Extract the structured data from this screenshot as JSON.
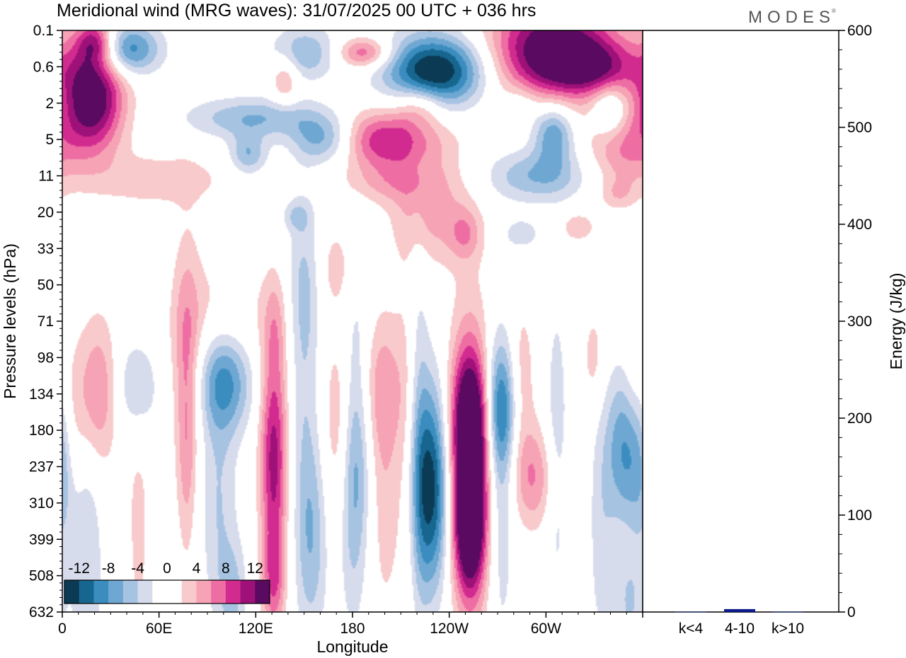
{
  "chart_data": {
    "type": "heatmap",
    "title": "Meridional wind (MRG waves):  31/07/2025  00 UTC  + 036 hrs",
    "brand": "MODES",
    "xlabel": "Longitude",
    "ylabel": "Pressure levels (hPa)",
    "x_ticks": [
      "0",
      "60E",
      "120E",
      "180",
      "120W",
      "60W"
    ],
    "x_tick_values": [
      0,
      60,
      120,
      180,
      240,
      300
    ],
    "xlim": [
      0,
      360
    ],
    "y_levels": [
      "0.1",
      "0.6",
      "2",
      "5",
      "11",
      "20",
      "33",
      "50",
      "71",
      "98",
      "134",
      "180",
      "237",
      "310",
      "399",
      "508",
      "632"
    ],
    "colorbar": {
      "labels": [
        "-12",
        "-8",
        "-4",
        "0",
        "4",
        "8",
        "12"
      ],
      "label_values": [
        -12,
        -8,
        -4,
        0,
        4,
        8,
        12
      ],
      "colors": [
        "#0b3a54",
        "#17668f",
        "#3b8dbf",
        "#6ea8d2",
        "#a7c3e2",
        "#d7dced",
        "#ffffff",
        "#ffffff",
        "#f9cacb",
        "#f6a3b6",
        "#ee6ea3",
        "#d22b8f",
        "#9d1179",
        "#5a0a60"
      ]
    },
    "blobs": [
      {
        "lon": 18,
        "lev": 1.8,
        "rx": 14,
        "ry": 1.1,
        "amp": 15
      },
      {
        "lon": 20,
        "lev": 0.3,
        "rx": 8,
        "ry": 0.4,
        "amp": 8
      },
      {
        "lon": 40,
        "lev": 0.5,
        "rx": 14,
        "ry": 0.5,
        "amp": -10
      },
      {
        "lon": 60,
        "lev": 4.1,
        "rx": 30,
        "ry": 0.5,
        "amp": 3.5
      },
      {
        "lon": 120,
        "lev": 2.4,
        "rx": 30,
        "ry": 0.4,
        "amp": -6
      },
      {
        "lon": 115,
        "lev": 3.4,
        "rx": 8,
        "ry": 0.4,
        "amp": -6
      },
      {
        "lon": 150,
        "lev": 0.6,
        "rx": 15,
        "ry": 0.5,
        "amp": -6
      },
      {
        "lon": 163,
        "lev": 3.0,
        "rx": 14,
        "ry": 0.5,
        "amp": -8
      },
      {
        "lon": 138,
        "lev": 1.3,
        "rx": 6,
        "ry": 0.5,
        "amp": 5
      },
      {
        "lon": 187,
        "lev": 0.6,
        "rx": 12,
        "ry": 0.3,
        "amp": 8
      },
      {
        "lon": 200,
        "lev": 3.0,
        "rx": 24,
        "ry": 0.6,
        "amp": 10
      },
      {
        "lon": 222,
        "lev": 2.0,
        "rx": 10,
        "ry": 0.4,
        "amp": 5
      },
      {
        "lon": 204,
        "lev": 4.2,
        "rx": 20,
        "ry": 0.4,
        "amp": 3.5
      },
      {
        "lon": 232,
        "lev": 1.1,
        "rx": 22,
        "ry": 0.7,
        "amp": -15
      },
      {
        "lon": 228,
        "lev": 5.0,
        "rx": 17,
        "ry": 1.0,
        "amp": 5
      },
      {
        "lon": 250,
        "lev": 5.6,
        "rx": 7,
        "ry": 0.5,
        "amp": 4
      },
      {
        "lon": 305,
        "lev": 0.5,
        "rx": 28,
        "ry": 1.0,
        "amp": 15
      },
      {
        "lon": 330,
        "lev": 1.0,
        "rx": 20,
        "ry": 0.5,
        "amp": 7
      },
      {
        "lon": 305,
        "lev": 2.8,
        "rx": 9,
        "ry": 0.6,
        "amp": -8
      },
      {
        "lon": 295,
        "lev": 4.0,
        "rx": 22,
        "ry": 0.5,
        "amp": -6
      },
      {
        "lon": 285,
        "lev": 2.0,
        "rx": 8,
        "ry": 0.4,
        "amp": -3
      },
      {
        "lon": 340,
        "lev": 2.2,
        "rx": 8,
        "ry": 0.5,
        "amp": -6
      },
      {
        "lon": 348,
        "lev": 3.2,
        "rx": 15,
        "ry": 0.8,
        "amp": 6
      },
      {
        "lon": 345,
        "lev": 4.5,
        "rx": 8,
        "ry": 0.3,
        "amp": 3
      },
      {
        "lon": 145,
        "lev": 5.1,
        "rx": 6,
        "ry": 0.3,
        "amp": -3.5
      },
      {
        "lon": 285,
        "lev": 5.6,
        "rx": 8,
        "ry": 0.3,
        "amp": -3.5
      },
      {
        "lon": 320,
        "lev": 5.4,
        "rx": 8,
        "ry": 0.3,
        "amp": 3.5
      },
      {
        "lon": 21,
        "lev": 10.0,
        "rx": 9,
        "ry": 1.5,
        "amp": 6.5
      },
      {
        "lon": 5,
        "lev": 10.8,
        "rx": 6,
        "ry": 1.5,
        "amp": 3.5
      },
      {
        "lon": 46,
        "lev": 9.8,
        "rx": 9,
        "ry": 1.0,
        "amp": -5
      },
      {
        "lon": 47,
        "lev": 13.5,
        "rx": 6,
        "ry": 3.0,
        "amp": 2.5
      },
      {
        "lon": 77,
        "lev": 9.2,
        "rx": 6,
        "ry": 2.5,
        "amp": 5
      },
      {
        "lon": 77,
        "lev": 12.0,
        "rx": 4,
        "ry": 2.0,
        "amp": 3
      },
      {
        "lon": 101,
        "lev": 9.6,
        "rx": 12,
        "ry": 1.0,
        "amp": -9
      },
      {
        "lon": 97,
        "lev": 13.0,
        "rx": 8,
        "ry": 2.5,
        "amp": -4
      },
      {
        "lon": 106,
        "lev": 15.5,
        "rx": 6,
        "ry": 1.0,
        "amp": -4
      },
      {
        "lon": 98,
        "lev": 8.0,
        "rx": 22,
        "ry": 1.3,
        "amp": 3
      },
      {
        "lon": 131,
        "lev": 11.8,
        "rx": 6,
        "ry": 2.2,
        "amp": 11
      },
      {
        "lon": 131,
        "lev": 15.2,
        "rx": 5,
        "ry": 1.0,
        "amp": 6
      },
      {
        "lon": 150,
        "lev": 10.2,
        "rx": 6,
        "ry": 3.5,
        "amp": -3
      },
      {
        "lon": 155,
        "lev": 14.0,
        "rx": 7,
        "ry": 2.0,
        "amp": -5
      },
      {
        "lon": 172,
        "lev": 11.0,
        "rx": 7,
        "ry": 2.0,
        "amp": 4
      },
      {
        "lon": 180,
        "lev": 13.0,
        "rx": 6,
        "ry": 2.5,
        "amp": -4
      },
      {
        "lon": 183,
        "lev": 10.5,
        "rx": 7,
        "ry": 2.5,
        "amp": -6
      },
      {
        "lon": 195,
        "lev": 9.8,
        "rx": 13,
        "ry": 1.5,
        "amp": 5
      },
      {
        "lon": 200,
        "lev": 13.0,
        "rx": 7,
        "ry": 2.5,
        "amp": 3
      },
      {
        "lon": 215,
        "lev": 11.5,
        "rx": 5,
        "ry": 4.0,
        "amp": 3
      },
      {
        "lon": 229,
        "lev": 12.6,
        "rx": 8,
        "ry": 2.0,
        "amp": -13
      },
      {
        "lon": 220,
        "lev": 11.0,
        "rx": 5,
        "ry": 4.0,
        "amp": -4
      },
      {
        "lon": 253,
        "lev": 10.8,
        "rx": 8,
        "ry": 1.4,
        "amp": 14
      },
      {
        "lon": 253,
        "lev": 13.6,
        "rx": 7,
        "ry": 1.3,
        "amp": 15
      },
      {
        "lon": 253,
        "lev": 12.2,
        "rx": 10,
        "ry": 3.5,
        "amp": 6
      },
      {
        "lon": 272,
        "lev": 10.4,
        "rx": 7,
        "ry": 1.3,
        "amp": -9
      },
      {
        "lon": 272,
        "lev": 13.0,
        "rx": 6,
        "ry": 3.0,
        "amp": -4
      },
      {
        "lon": 285,
        "lev": 9.5,
        "rx": 6,
        "ry": 1.5,
        "amp": 3.5
      },
      {
        "lon": 292,
        "lev": 12.3,
        "rx": 10,
        "ry": 1.0,
        "amp": 6
      },
      {
        "lon": 307,
        "lev": 11.5,
        "rx": 5,
        "ry": 3.0,
        "amp": -3.5
      },
      {
        "lon": 330,
        "lev": 9.0,
        "rx": 5,
        "ry": 1.0,
        "amp": 3
      },
      {
        "lon": 351,
        "lev": 11.5,
        "rx": 9,
        "ry": 1.5,
        "amp": -9
      },
      {
        "lon": 352,
        "lev": 15.8,
        "rx": 6,
        "ry": 1.0,
        "amp": -4
      },
      {
        "lon": 335,
        "lev": 14.0,
        "rx": 6,
        "ry": 2.5,
        "amp": -3
      },
      {
        "lon": 15,
        "lev": 14.5,
        "rx": 7,
        "ry": 3.0,
        "amp": -4
      },
      {
        "lon": 0,
        "lev": 12.0,
        "rx": 5,
        "ry": 2.0,
        "amp": -3
      },
      {
        "lon": 132,
        "lev": 8.0,
        "rx": 5,
        "ry": 1.0,
        "amp": 3
      },
      {
        "lon": 355,
        "lev": 10.0,
        "rx": 5,
        "ry": 1.5,
        "amp": 3
      },
      {
        "lon": 170,
        "lev": 6.5,
        "rx": 8,
        "ry": 0.8,
        "amp": 3
      },
      {
        "lon": 150,
        "lev": 7.0,
        "rx": 8,
        "ry": 1.5,
        "amp": -3
      }
    ],
    "energy": {
      "ylabel": "Energy (J/kg)",
      "ylim": [
        0,
        600
      ],
      "y_ticks": [
        "0",
        "100",
        "200",
        "300",
        "400",
        "500",
        "600"
      ],
      "y_tick_values": [
        0,
        100,
        200,
        300,
        400,
        500,
        600
      ],
      "categories": [
        "k<4",
        "4-10",
        "k>10"
      ],
      "values": [
        0.5,
        3,
        0.5
      ],
      "bar_colors": [
        "#1e3a7a",
        "#0a1a8c",
        "#1e3a7a"
      ]
    }
  }
}
